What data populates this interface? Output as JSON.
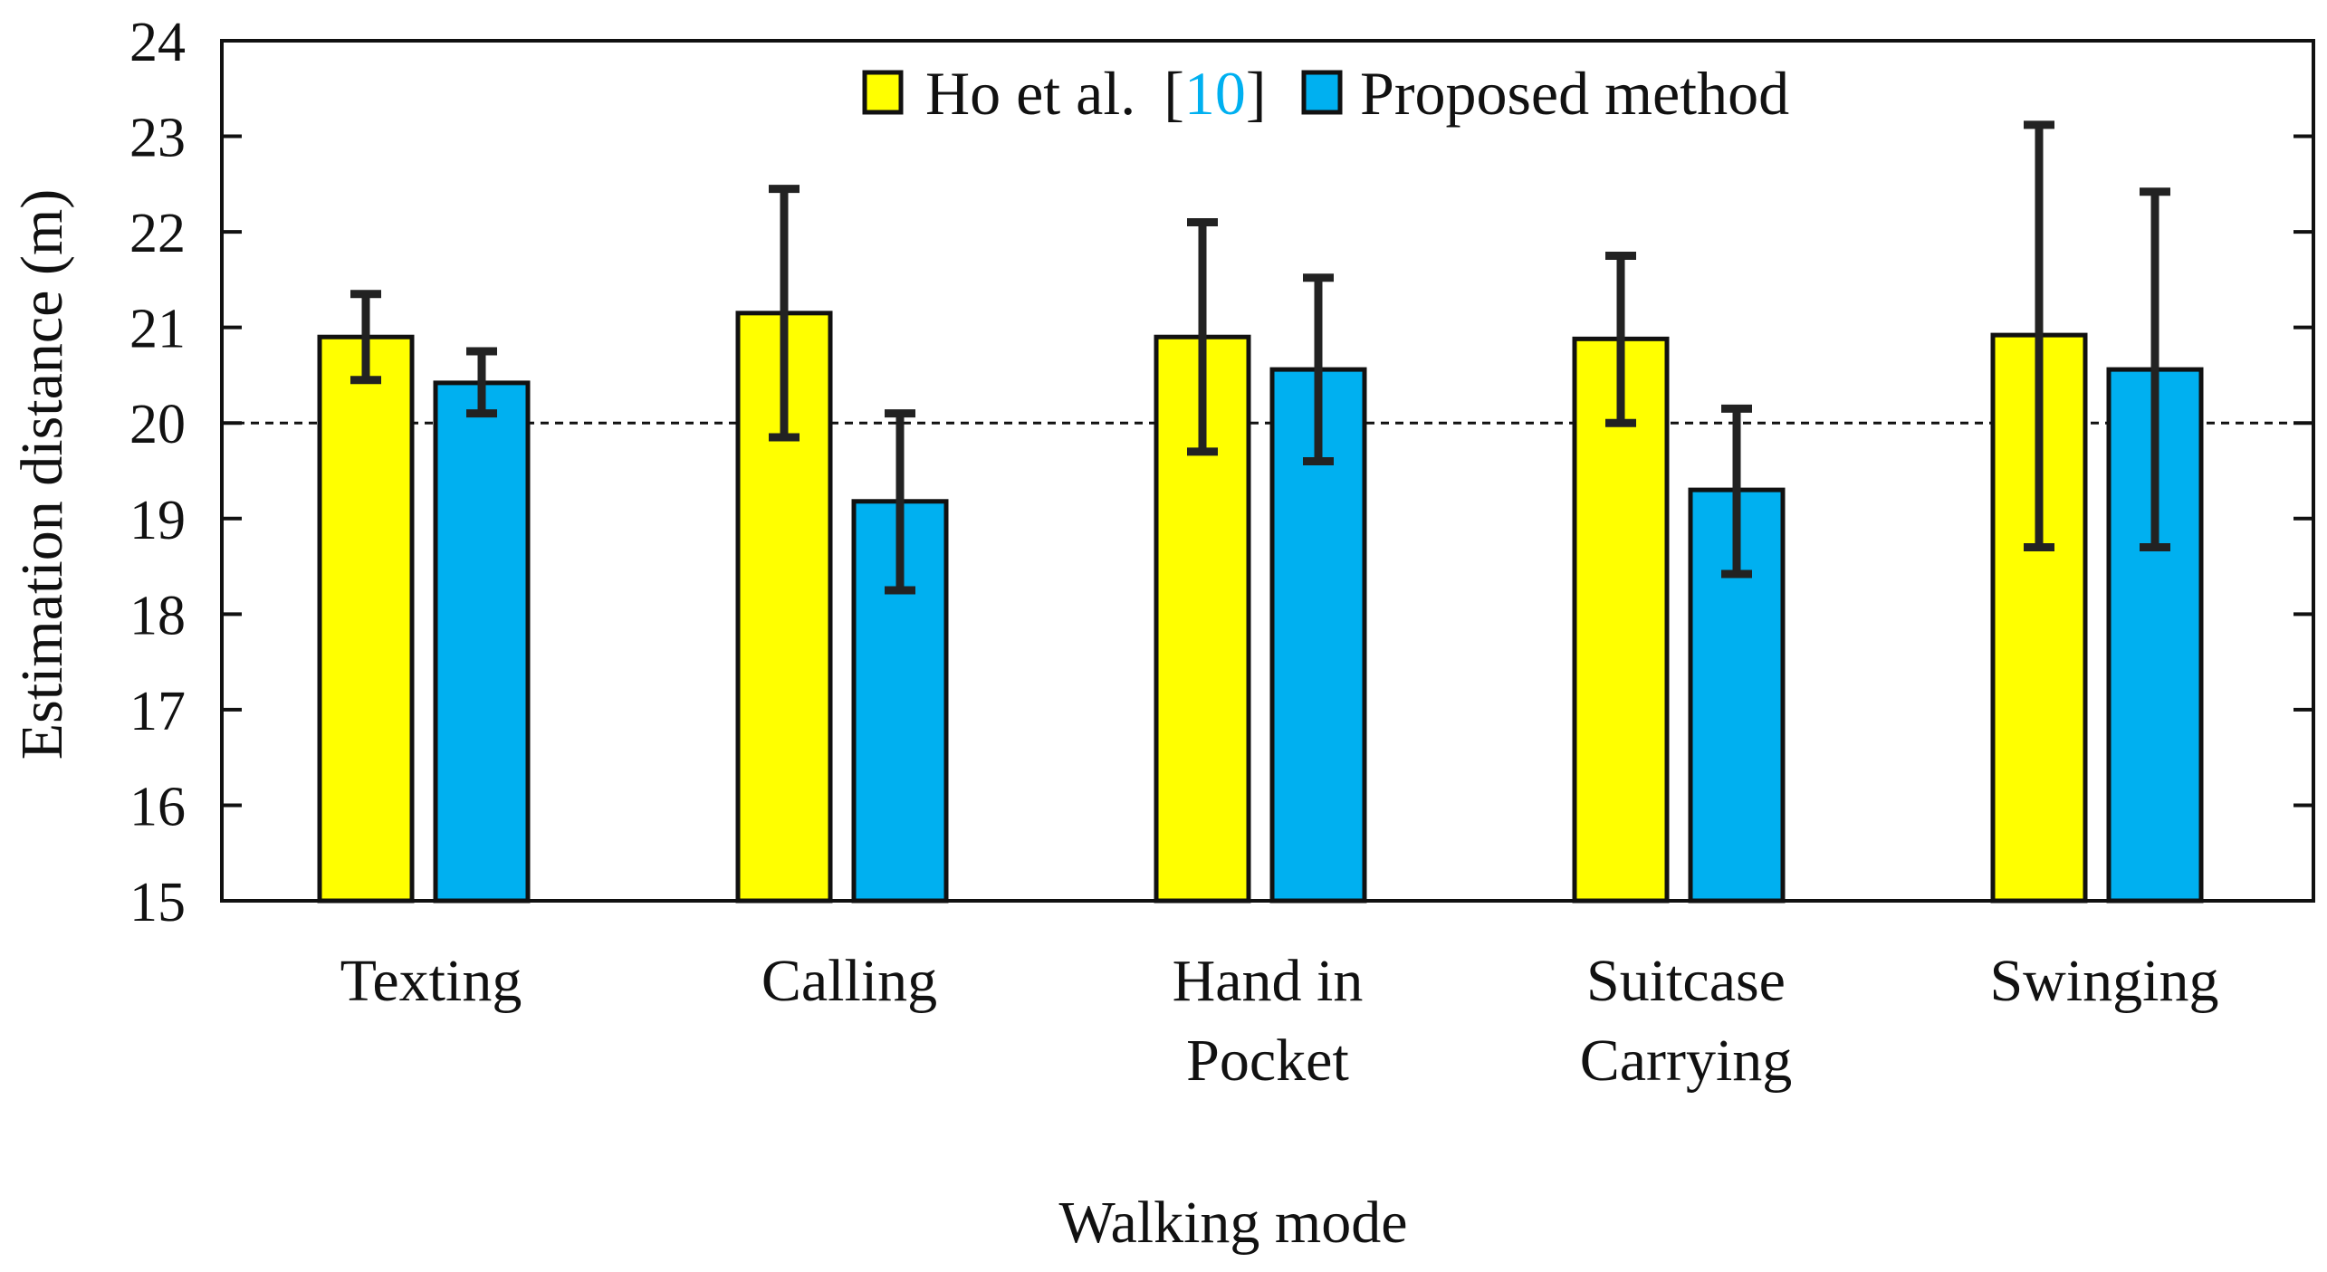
{
  "chart_data": {
    "type": "bar",
    "categories": [
      [
        "Texting"
      ],
      [
        "Calling"
      ],
      [
        "Hand in",
        "Pocket"
      ],
      [
        "Suitcase",
        "Carrying"
      ],
      [
        "Swinging"
      ]
    ],
    "series": [
      {
        "name": "Ho et al.",
        "reference": "10",
        "color": "#ffff00",
        "values": [
          20.9,
          21.15,
          20.9,
          20.88,
          20.92
        ],
        "error_low": [
          20.45,
          19.85,
          19.7,
          20.0,
          18.7
        ],
        "error_high": [
          21.35,
          22.45,
          22.1,
          21.75,
          23.12
        ]
      },
      {
        "name": "Proposed method",
        "color": "#00b0f0",
        "values": [
          20.42,
          19.18,
          20.56,
          19.3,
          20.56
        ],
        "error_low": [
          20.1,
          18.25,
          19.6,
          18.42,
          18.7
        ],
        "error_high": [
          20.75,
          20.1,
          21.52,
          20.15,
          22.42
        ]
      }
    ],
    "reference_line": 20,
    "xlabel": "Walking mode",
    "ylabel": "Estimation distance (m)",
    "ylim": [
      15,
      24
    ],
    "yticks": [
      15,
      16,
      17,
      18,
      19,
      20,
      21,
      22,
      23,
      24
    ],
    "legend": {
      "position": "top-center",
      "ref_color": "#00b0f0"
    }
  }
}
